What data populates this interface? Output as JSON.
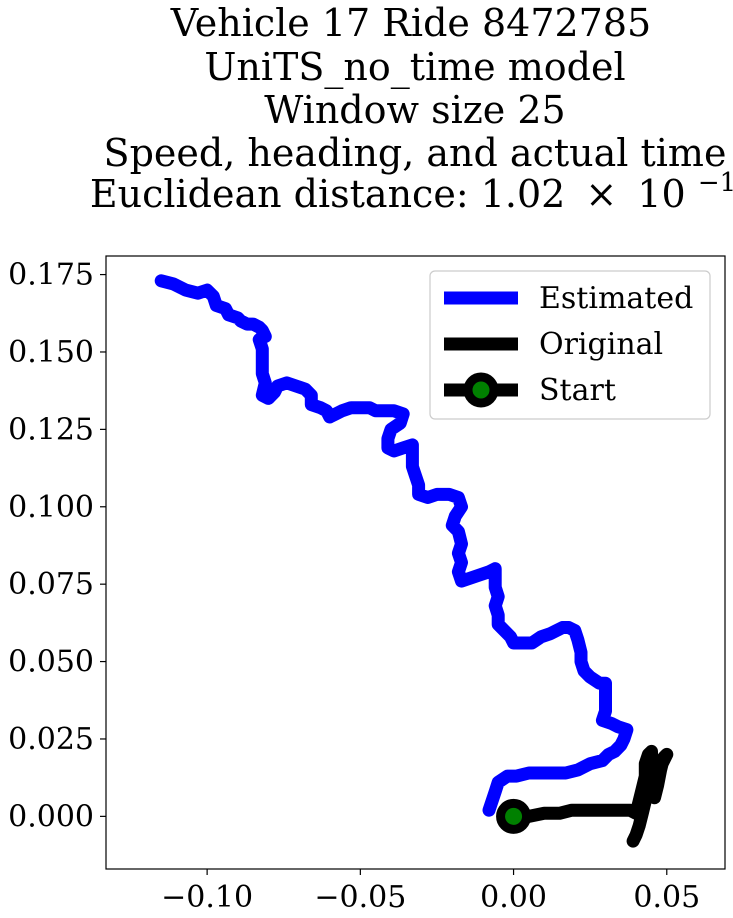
{
  "chart_data": {
    "type": "line",
    "title_lines": [
      "Vehicle 17 Ride 8472785",
      "UniTS_no_time model",
      "Window size 25",
      "Speed, heading, and actual time"
    ],
    "title_metric_prefix": "Euclidean distance: 1.02",
    "title_metric_times": "×",
    "title_metric_base": "10",
    "title_metric_exponent": "−1",
    "xlabel": "",
    "ylabel": "",
    "xlim": [
      -0.133,
      0.069
    ],
    "ylim": [
      -0.017,
      0.181
    ],
    "x_ticks": [
      -0.1,
      -0.05,
      0.0,
      0.05
    ],
    "x_tick_labels": [
      "−0.10",
      "−0.05",
      "0.00",
      "0.05"
    ],
    "y_ticks": [
      0.0,
      0.025,
      0.05,
      0.075,
      0.1,
      0.125,
      0.15,
      0.175
    ],
    "y_tick_labels": [
      "0.000",
      "0.025",
      "0.050",
      "0.075",
      "0.100",
      "0.125",
      "0.150",
      "0.175"
    ],
    "grid": false,
    "legend_position": "top-right",
    "series": [
      {
        "name": "Estimated",
        "color": "#0000ff",
        "points": [
          [
            -0.115,
            0.173
          ],
          [
            -0.111,
            0.172
          ],
          [
            -0.107,
            0.17
          ],
          [
            -0.103,
            0.169
          ],
          [
            -0.1,
            0.17
          ],
          [
            -0.098,
            0.168
          ],
          [
            -0.097,
            0.165
          ],
          [
            -0.094,
            0.164
          ],
          [
            -0.093,
            0.162
          ],
          [
            -0.09,
            0.161
          ],
          [
            -0.089,
            0.16
          ],
          [
            -0.087,
            0.159
          ],
          [
            -0.085,
            0.159
          ],
          [
            -0.083,
            0.158
          ],
          [
            -0.082,
            0.157
          ],
          [
            -0.081,
            0.155
          ],
          [
            -0.083,
            0.154
          ],
          [
            -0.082,
            0.151
          ],
          [
            -0.082,
            0.147
          ],
          [
            -0.082,
            0.143
          ],
          [
            -0.081,
            0.14
          ],
          [
            -0.082,
            0.136
          ],
          [
            -0.08,
            0.135
          ],
          [
            -0.078,
            0.137
          ],
          [
            -0.077,
            0.139
          ],
          [
            -0.074,
            0.14
          ],
          [
            -0.071,
            0.139
          ],
          [
            -0.068,
            0.138
          ],
          [
            -0.066,
            0.136
          ],
          [
            -0.066,
            0.133
          ],
          [
            -0.063,
            0.132
          ],
          [
            -0.061,
            0.131
          ],
          [
            -0.06,
            0.129
          ],
          [
            -0.058,
            0.13
          ],
          [
            -0.056,
            0.131
          ],
          [
            -0.053,
            0.132
          ],
          [
            -0.05,
            0.132
          ],
          [
            -0.047,
            0.132
          ],
          [
            -0.045,
            0.131
          ],
          [
            -0.042,
            0.131
          ],
          [
            -0.039,
            0.131
          ],
          [
            -0.036,
            0.13
          ],
          [
            -0.037,
            0.127
          ],
          [
            -0.04,
            0.125
          ],
          [
            -0.041,
            0.122
          ],
          [
            -0.041,
            0.119
          ],
          [
            -0.039,
            0.118
          ],
          [
            -0.036,
            0.119
          ],
          [
            -0.033,
            0.12
          ],
          [
            -0.033,
            0.117
          ],
          [
            -0.033,
            0.113
          ],
          [
            -0.032,
            0.11
          ],
          [
            -0.031,
            0.107
          ],
          [
            -0.031,
            0.104
          ],
          [
            -0.028,
            0.103
          ],
          [
            -0.025,
            0.104
          ],
          [
            -0.021,
            0.104
          ],
          [
            -0.018,
            0.103
          ],
          [
            -0.017,
            0.1
          ],
          [
            -0.019,
            0.097
          ],
          [
            -0.02,
            0.094
          ],
          [
            -0.018,
            0.092
          ],
          [
            -0.017,
            0.088
          ],
          [
            -0.018,
            0.085
          ],
          [
            -0.017,
            0.082
          ],
          [
            -0.018,
            0.079
          ],
          [
            -0.017,
            0.076
          ],
          [
            -0.014,
            0.077
          ],
          [
            -0.011,
            0.078
          ],
          [
            -0.008,
            0.079
          ],
          [
            -0.006,
            0.08
          ],
          [
            -0.006,
            0.077
          ],
          [
            -0.006,
            0.074
          ],
          [
            -0.005,
            0.071
          ],
          [
            -0.006,
            0.068
          ],
          [
            -0.005,
            0.065
          ],
          [
            -0.005,
            0.062
          ],
          [
            -0.003,
            0.06
          ],
          [
            -0.001,
            0.058
          ],
          [
            0.0,
            0.056
          ],
          [
            0.003,
            0.056
          ],
          [
            0.006,
            0.056
          ],
          [
            0.009,
            0.058
          ],
          [
            0.012,
            0.059
          ],
          [
            0.014,
            0.06
          ],
          [
            0.016,
            0.061
          ],
          [
            0.018,
            0.061
          ],
          [
            0.02,
            0.06
          ],
          [
            0.021,
            0.057
          ],
          [
            0.022,
            0.053
          ],
          [
            0.022,
            0.05
          ],
          [
            0.023,
            0.047
          ],
          [
            0.025,
            0.045
          ],
          [
            0.028,
            0.043
          ],
          [
            0.03,
            0.043
          ],
          [
            0.03,
            0.04
          ],
          [
            0.03,
            0.037
          ],
          [
            0.03,
            0.034
          ],
          [
            0.029,
            0.031
          ],
          [
            0.032,
            0.03
          ],
          [
            0.034,
            0.029
          ],
          [
            0.037,
            0.028
          ],
          [
            0.036,
            0.025
          ],
          [
            0.035,
            0.023
          ],
          [
            0.033,
            0.021
          ],
          [
            0.031,
            0.02
          ],
          [
            0.029,
            0.018
          ],
          [
            0.025,
            0.017
          ],
          [
            0.021,
            0.015
          ],
          [
            0.017,
            0.014
          ],
          [
            0.013,
            0.014
          ],
          [
            0.009,
            0.014
          ],
          [
            0.005,
            0.014
          ],
          [
            0.001,
            0.013
          ],
          [
            -0.002,
            0.013
          ],
          [
            -0.005,
            0.011
          ],
          [
            -0.006,
            0.008
          ],
          [
            -0.007,
            0.005
          ],
          [
            -0.008,
            0.002
          ]
        ]
      },
      {
        "name": "Original",
        "color": "#000000",
        "points": [
          [
            0.0,
            0.0
          ],
          [
            0.005,
            0.0
          ],
          [
            0.01,
            0.001
          ],
          [
            0.015,
            0.001
          ],
          [
            0.019,
            0.002
          ],
          [
            0.024,
            0.002
          ],
          [
            0.029,
            0.002
          ],
          [
            0.034,
            0.002
          ],
          [
            0.038,
            0.002
          ],
          [
            0.04,
            0.001
          ],
          [
            0.041,
            0.005
          ],
          [
            0.042,
            0.009
          ],
          [
            0.043,
            0.013
          ],
          [
            0.043,
            0.017
          ],
          [
            0.044,
            0.02
          ],
          [
            0.045,
            0.021
          ],
          [
            0.045,
            0.017
          ],
          [
            0.046,
            0.013
          ],
          [
            0.046,
            0.009
          ],
          [
            0.046,
            0.006
          ],
          [
            0.047,
            0.01
          ],
          [
            0.048,
            0.015
          ],
          [
            0.049,
            0.019
          ],
          [
            0.05,
            0.02
          ],
          [
            0.048,
            0.016
          ],
          [
            0.046,
            0.012
          ],
          [
            0.045,
            0.008
          ],
          [
            0.043,
            0.005
          ],
          [
            0.042,
            0.001
          ],
          [
            0.041,
            -0.003
          ],
          [
            0.04,
            -0.006
          ],
          [
            0.039,
            -0.008
          ]
        ]
      }
    ],
    "start_point": {
      "name": "Start",
      "x": 0.0,
      "y": 0.0,
      "marker_color": "#008000",
      "edge_color": "#000000"
    },
    "legend_entries": [
      {
        "label": "Estimated",
        "kind": "line",
        "color": "#0000ff"
      },
      {
        "label": "Original",
        "kind": "line",
        "color": "#000000"
      },
      {
        "label": "Start",
        "kind": "marker",
        "color": "#000000",
        "marker_color": "#008000"
      }
    ]
  }
}
